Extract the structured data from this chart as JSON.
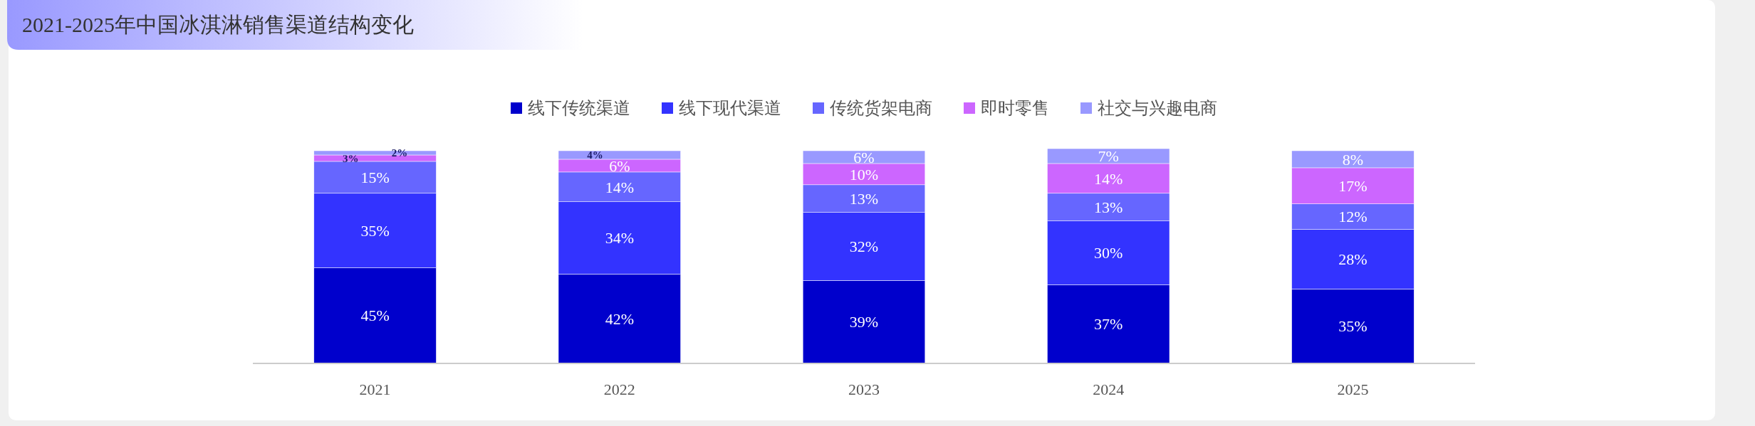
{
  "chart_data": {
    "type": "bar",
    "title": "2021-2025年中国冰淇淋销售渠道结构变化",
    "stacked": true,
    "legend": "top",
    "categories": [
      "2021",
      "2022",
      "2023",
      "2024",
      "2025"
    ],
    "series": [
      {
        "name": "线下传统渠道",
        "color": "#0000cc",
        "values": [
          45,
          42,
          39,
          37,
          35
        ],
        "value_labels": [
          "45%",
          "42%",
          "39%",
          "37%",
          "35%"
        ]
      },
      {
        "name": "线下现代渠道",
        "color": "#3333ff",
        "values": [
          35,
          34,
          32,
          30,
          28
        ],
        "value_labels": [
          "35%",
          "34%",
          "32%",
          "30%",
          "28%"
        ]
      },
      {
        "name": "传统货架电商",
        "color": "#6666ff",
        "values": [
          15,
          14,
          13,
          13,
          12
        ],
        "value_labels": [
          "15%",
          "14%",
          "13%",
          "13%",
          "12%"
        ]
      },
      {
        "name": "即时零售",
        "color": "#cc66ff",
        "values": [
          3,
          6,
          10,
          14,
          17
        ],
        "value_labels": [
          "3%",
          "6%",
          "10%",
          "14%",
          "17%"
        ]
      },
      {
        "name": "社交与兴趣电商",
        "color": "#9999ff",
        "values": [
          2,
          4,
          6,
          7,
          8
        ],
        "value_labels": [
          "2%",
          "4%",
          "6%",
          "7%",
          "8%"
        ]
      }
    ]
  }
}
